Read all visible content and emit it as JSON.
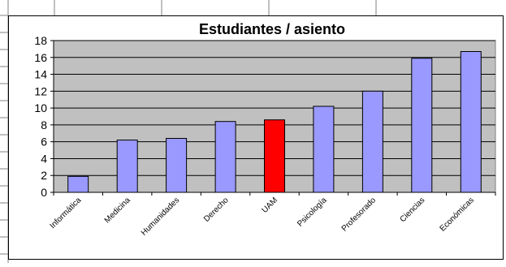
{
  "chart_data": {
    "type": "bar",
    "title": "Estudiantes / asiento",
    "xlabel": "",
    "ylabel": "",
    "categories": [
      "Informática",
      "Medicina",
      "Humanidades",
      "Derecho",
      "UAM",
      "Psicología",
      "Profesorado",
      "Ciencias",
      "Económicas"
    ],
    "values": [
      1.9,
      6.2,
      6.4,
      8.4,
      8.6,
      10.2,
      12.0,
      15.9,
      16.7
    ],
    "bar_colors": [
      "#9999ff",
      "#9999ff",
      "#9999ff",
      "#9999ff",
      "#ff0000",
      "#9999ff",
      "#9999ff",
      "#9999ff",
      "#9999ff"
    ],
    "ylim": [
      0,
      18
    ],
    "yticks": [
      0,
      2,
      4,
      6,
      8,
      10,
      12,
      14,
      16,
      18
    ],
    "grid": true,
    "legend": "none",
    "plot_background": "#c0c0c0"
  }
}
